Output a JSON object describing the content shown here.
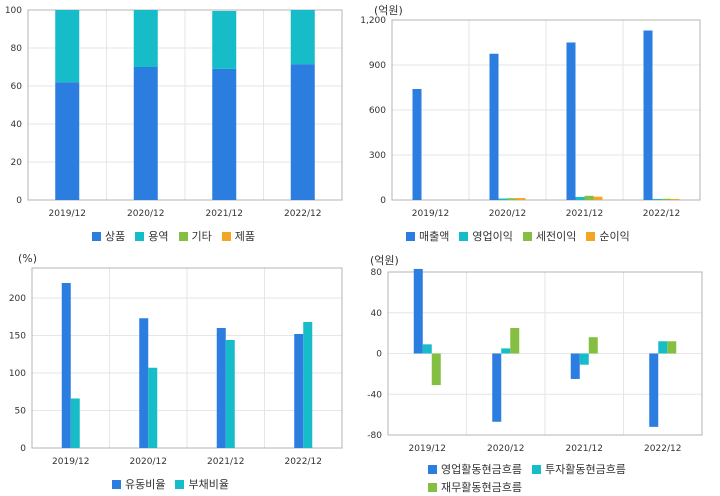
{
  "colors": {
    "blue": "#2b7de0",
    "teal": "#16bcc8",
    "green": "#84bf41",
    "orange": "#f4a523",
    "grid": "#e6e6e6",
    "frame": "#b4b4b4"
  },
  "chart_data": [
    {
      "type": "bar",
      "stacked": true,
      "categories": [
        "2019/12",
        "2020/12",
        "2021/12",
        "2022/12"
      ],
      "series": [
        {
          "name": "상품",
          "values": [
            62,
            70,
            69,
            71.5
          ]
        },
        {
          "name": "용역",
          "values": [
            38,
            30,
            30.5,
            28.5
          ]
        },
        {
          "name": "기타",
          "values": [
            0,
            0,
            0,
            0
          ]
        },
        {
          "name": "제품",
          "values": [
            0,
            0,
            0,
            0
          ]
        }
      ],
      "ylim": [
        0,
        100
      ],
      "yticks": [
        "0",
        "20",
        "40",
        "60",
        "80",
        "100"
      ],
      "unit": ""
    },
    {
      "type": "bar",
      "categories": [
        "2019/12",
        "2020/12",
        "2021/12",
        "2022/12"
      ],
      "series": [
        {
          "name": "매출액",
          "values": [
            740,
            975,
            1050,
            1130
          ]
        },
        {
          "name": "영업이익",
          "values": [
            0,
            10,
            20,
            7
          ]
        },
        {
          "name": "세전이익",
          "values": [
            0,
            12,
            28,
            8
          ]
        },
        {
          "name": "순이익",
          "values": [
            0,
            13,
            22,
            7
          ]
        }
      ],
      "ylim": [
        0,
        1200
      ],
      "yticks": [
        "0",
        "300",
        "600",
        "900",
        "1,200"
      ],
      "unit": "(억원)"
    },
    {
      "type": "bar",
      "categories": [
        "2019/12",
        "2020/12",
        "2021/12",
        "2022/12"
      ],
      "series": [
        {
          "name": "유동비율",
          "values": [
            220,
            173,
            160,
            152
          ]
        },
        {
          "name": "부채비율",
          "values": [
            66,
            107,
            144,
            168
          ]
        }
      ],
      "ylim": [
        0,
        240
      ],
      "yticks": [
        "0",
        "50",
        "100",
        "150",
        "200"
      ],
      "unit": "(%)"
    },
    {
      "type": "bar",
      "categories": [
        "2019/12",
        "2020/12",
        "2021/12",
        "2022/12"
      ],
      "series": [
        {
          "name": "영업활동현금흐름",
          "values": [
            83,
            -67,
            -25,
            -72
          ]
        },
        {
          "name": "투자활동현금흐름",
          "values": [
            9,
            5,
            -11,
            12
          ]
        },
        {
          "name": "재무활동현금흐름",
          "values": [
            -31,
            25,
            16,
            12
          ]
        }
      ],
      "ylim": [
        -80,
        80
      ],
      "yticks": [
        "-80",
        "-40",
        "0",
        "40",
        "80"
      ],
      "unit": "(억원)"
    }
  ]
}
